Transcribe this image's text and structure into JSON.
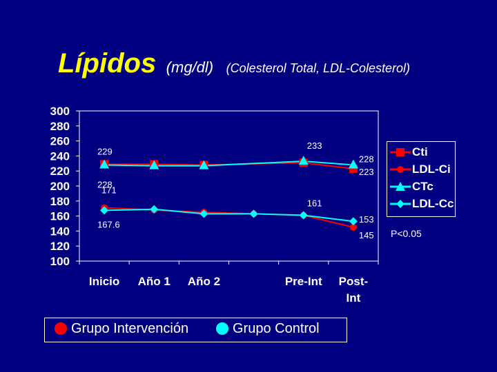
{
  "title": {
    "main": "Lípidos",
    "unit": "(mg/dl)",
    "subtitle": "(Colesterol Total, LDL-Colesterol)"
  },
  "p_value_note": "P<0.05",
  "group_legend": [
    {
      "label": "Grupo Intervención",
      "color": "#ff0000"
    },
    {
      "label": "Grupo Control",
      "color": "#00ffff"
    }
  ],
  "chart_data": {
    "type": "line",
    "categories": [
      "Inicio",
      "Año 1",
      "Año 2",
      "",
      "Pre-Int",
      "Post-Int"
    ],
    "ylim": [
      100,
      300
    ],
    "yticks": [
      300,
      280,
      260,
      240,
      220,
      200,
      180,
      160,
      140,
      120,
      100
    ],
    "grid": false,
    "legend_position": "right",
    "series": [
      {
        "name": "Cti",
        "color": "#ff0000",
        "marker": "square",
        "values": [
          229,
          229,
          228,
          null,
          231,
          223
        ]
      },
      {
        "name": "LDL-Ci",
        "color": "#ff0000",
        "marker": "circle",
        "values": [
          171,
          168,
          165,
          163,
          161,
          145
        ]
      },
      {
        "name": "CTc",
        "color": "#00ffff",
        "marker": "triangle",
        "values": [
          228,
          227,
          227,
          null,
          233,
          228
        ]
      },
      {
        "name": "LDL-Cc",
        "color": "#00ffff",
        "marker": "diamond",
        "values": [
          167.6,
          169,
          163,
          163,
          161,
          153
        ]
      }
    ],
    "annotations": [
      {
        "text": "229",
        "category": 0,
        "y": 229
      },
      {
        "text": "228",
        "category": 0,
        "y": 228
      },
      {
        "text": "171",
        "category": 0,
        "y": 171
      },
      {
        "text": "167.6",
        "category": 0,
        "y": 167.6
      },
      {
        "text": "233",
        "category": 4,
        "y": 233
      },
      {
        "text": "161",
        "category": 4,
        "y": 161
      },
      {
        "text": "228",
        "category": 5,
        "y": 228
      },
      {
        "text": "223",
        "category": 5,
        "y": 223
      },
      {
        "text": "153",
        "category": 5,
        "y": 153
      },
      {
        "text": "145",
        "category": 5,
        "y": 145
      }
    ],
    "x_tick_labels": [
      {
        "lines": [
          "Inicio"
        ]
      },
      {
        "lines": [
          "Año 1"
        ]
      },
      {
        "lines": [
          "Año 2"
        ]
      },
      {
        "lines": []
      },
      {
        "lines": [
          "Pre-Int"
        ]
      },
      {
        "lines": [
          "Post-",
          "Int"
        ]
      }
    ]
  }
}
